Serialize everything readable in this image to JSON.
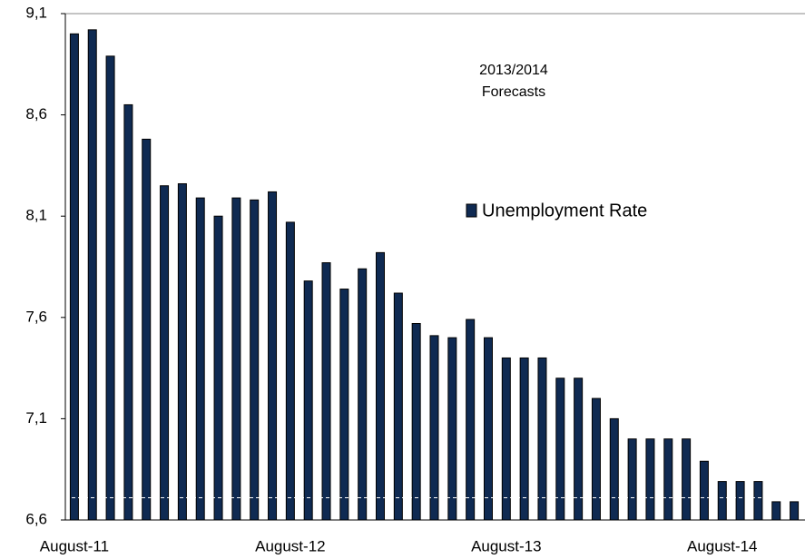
{
  "chart_data": {
    "type": "bar",
    "annotation": [
      "2013/2014",
      "Forecasts"
    ],
    "categories": [
      "August-11",
      null,
      null,
      null,
      null,
      null,
      null,
      null,
      null,
      null,
      null,
      null,
      "August-12",
      null,
      null,
      null,
      null,
      null,
      null,
      null,
      null,
      null,
      null,
      null,
      "August-13",
      null,
      null,
      null,
      null,
      null,
      null,
      null,
      null,
      null,
      null,
      null,
      "August-14",
      null,
      null,
      null,
      null
    ],
    "series": [
      {
        "name": "Unemployment Rate",
        "color": "#0f2a52",
        "values": [
          9.0,
          9.02,
          8.89,
          8.65,
          8.48,
          8.25,
          8.26,
          8.19,
          8.1,
          8.19,
          8.18,
          8.22,
          8.07,
          7.78,
          7.87,
          7.74,
          7.84,
          7.92,
          7.72,
          7.57,
          7.51,
          7.5,
          7.59,
          7.5,
          7.4,
          7.4,
          7.4,
          7.3,
          7.3,
          7.2,
          7.1,
          7.0,
          7.0,
          7.0,
          7.0,
          6.89,
          6.79,
          6.79,
          6.79,
          6.69,
          6.69
        ]
      }
    ],
    "ylim": [
      6.6,
      9.1
    ],
    "yticks": [
      {
        "value": 6.6,
        "label": "6,6"
      },
      {
        "value": 7.1,
        "label": "7,1"
      },
      {
        "value": 7.6,
        "label": "7,6"
      },
      {
        "value": 8.1,
        "label": "8,1"
      },
      {
        "value": 8.6,
        "label": "8,6"
      },
      {
        "value": 9.1,
        "label": "9,1"
      }
    ],
    "reference_line": 6.71,
    "grid": false
  }
}
